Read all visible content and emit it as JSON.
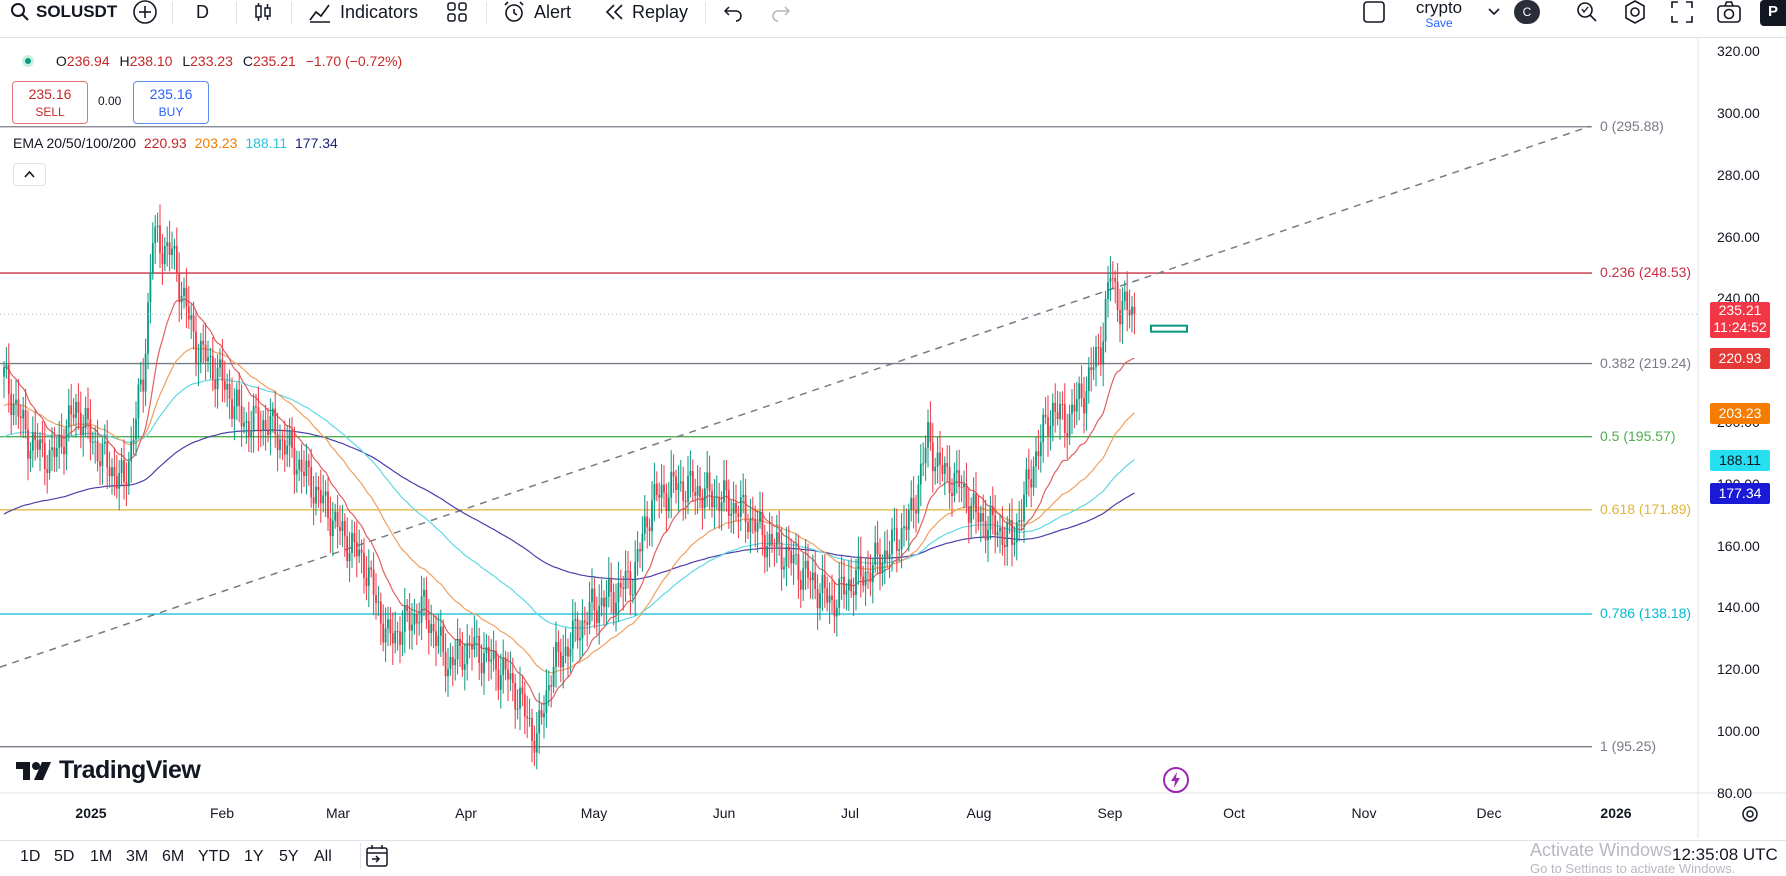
{
  "toolbar": {
    "symbol": "SOLUSDT",
    "interval": "D",
    "indicators_label": "Indicators",
    "alert_label": "Alert",
    "replay_label": "Replay",
    "layout_name": "crypto",
    "save_label": "Save",
    "avatar_letter": "C",
    "profile_letter": "P"
  },
  "legend": {
    "open_key": "O",
    "open": "236.94",
    "high_key": "H",
    "high": "238.10",
    "low_key": "L",
    "low": "233.23",
    "close_key": "C",
    "close": "235.21",
    "change": "−1.70 (−0.72%)",
    "sell_price": "235.16",
    "sell_label": "SELL",
    "spread": "0.00",
    "buy_price": "235.16",
    "buy_label": "BUY",
    "ema_title": "EMA 20/50/100/200",
    "ema20": "220.93",
    "ema50": "203.23",
    "ema100": "188.11",
    "ema200": "177.34",
    "collapse_icon": "chevron-up-icon"
  },
  "fib_levels": [
    {
      "label": "0 (295.88)",
      "value": 295.88,
      "color": "#787b86"
    },
    {
      "label": "0.236 (248.53)",
      "value": 248.53,
      "color": "#c62f44"
    },
    {
      "label": "0.382 (219.24)",
      "value": 219.24,
      "color": "#787b86"
    },
    {
      "label": "0.5 (195.57)",
      "value": 195.57,
      "color": "#4caf50"
    },
    {
      "label": "0.618 (171.89)",
      "value": 171.89,
      "color": "#e3b33a"
    },
    {
      "label": "0.786 (138.18)",
      "value": 138.18,
      "color": "#00bcd4"
    },
    {
      "label": "1 (95.25)",
      "value": 95.25,
      "color": "#787b86"
    }
  ],
  "price_axis": {
    "ticks": [
      "320.00",
      "300.00",
      "280.00",
      "260.00",
      "240.00",
      "200.00",
      "180.00",
      "160.00",
      "140.00",
      "120.00",
      "100.00",
      "80.00"
    ],
    "tick_values": [
      320,
      300,
      280,
      260,
      240,
      200,
      180,
      160,
      140,
      120,
      100,
      80
    ],
    "last_price": "235.21",
    "countdown": "11:24:52",
    "last_color": "#f23645",
    "ema_labels": [
      {
        "text": "220.93",
        "color": "#e53935"
      },
      {
        "text": "203.23",
        "color": "#f57c00"
      },
      {
        "text": "188.11",
        "color": "#26e0f2"
      },
      {
        "text": "177.34",
        "color": "#1a1ad6"
      }
    ]
  },
  "time_axis": {
    "ticks": [
      "2025",
      "Feb",
      "Mar",
      "Apr",
      "May",
      "Jun",
      "Jul",
      "Aug",
      "Sep",
      "Oct",
      "Nov",
      "Dec",
      "2026"
    ]
  },
  "bottom_bar": {
    "ranges": [
      "1D",
      "5D",
      "1M",
      "3M",
      "6M",
      "YTD",
      "1Y",
      "5Y",
      "All"
    ],
    "clock": "12:35:08 UTC",
    "watermark_line1": "Activate Windows",
    "watermark_line2": "Go to Settings to activate Windows."
  },
  "brand": "TradingView",
  "chart_data": {
    "type": "candlestick",
    "symbol": "SOLUSDT",
    "interval": "D",
    "y_range": [
      77,
      322
    ],
    "x_months": [
      "2025",
      "Feb",
      "Mar",
      "Apr",
      "May",
      "Jun",
      "Jul",
      "Aug",
      "Sep",
      "Oct",
      "Nov",
      "Dec",
      "2026"
    ],
    "price_path": [
      [
        0,
        215
      ],
      [
        10,
        195
      ],
      [
        20,
        188
      ],
      [
        30,
        205
      ],
      [
        40,
        190
      ],
      [
        50,
        180
      ],
      [
        58,
        215
      ],
      [
        62,
        260
      ],
      [
        70,
        255
      ],
      [
        80,
        225
      ],
      [
        90,
        215
      ],
      [
        100,
        200
      ],
      [
        110,
        200
      ],
      [
        120,
        190
      ],
      [
        130,
        178
      ],
      [
        140,
        165
      ],
      [
        150,
        155
      ],
      [
        160,
        130
      ],
      [
        175,
        140
      ],
      [
        185,
        122
      ],
      [
        195,
        128
      ],
      [
        210,
        118
      ],
      [
        215,
        110
      ],
      [
        222,
        97
      ],
      [
        228,
        120
      ],
      [
        235,
        128
      ],
      [
        245,
        140
      ],
      [
        255,
        145
      ],
      [
        262,
        150
      ],
      [
        270,
        175
      ],
      [
        280,
        180
      ],
      [
        290,
        178
      ],
      [
        300,
        175
      ],
      [
        310,
        170
      ],
      [
        318,
        162
      ],
      [
        325,
        158
      ],
      [
        335,
        150
      ],
      [
        345,
        142
      ],
      [
        352,
        148
      ],
      [
        360,
        152
      ],
      [
        370,
        160
      ],
      [
        378,
        170
      ],
      [
        385,
        195
      ],
      [
        390,
        185
      ],
      [
        398,
        180
      ],
      [
        405,
        170
      ],
      [
        415,
        165
      ],
      [
        420,
        162
      ],
      [
        425,
        175
      ],
      [
        430,
        190
      ],
      [
        437,
        205
      ],
      [
        442,
        200
      ],
      [
        450,
        210
      ],
      [
        457,
        225
      ],
      [
        461,
        248
      ],
      [
        465,
        238
      ],
      [
        471,
        235
      ]
    ],
    "ema20_last": 220.93,
    "ema50_last": 203.23,
    "ema100_last": 188.11,
    "ema200_last": 177.34,
    "trendline_start": 121,
    "trendline_end": 296
  }
}
